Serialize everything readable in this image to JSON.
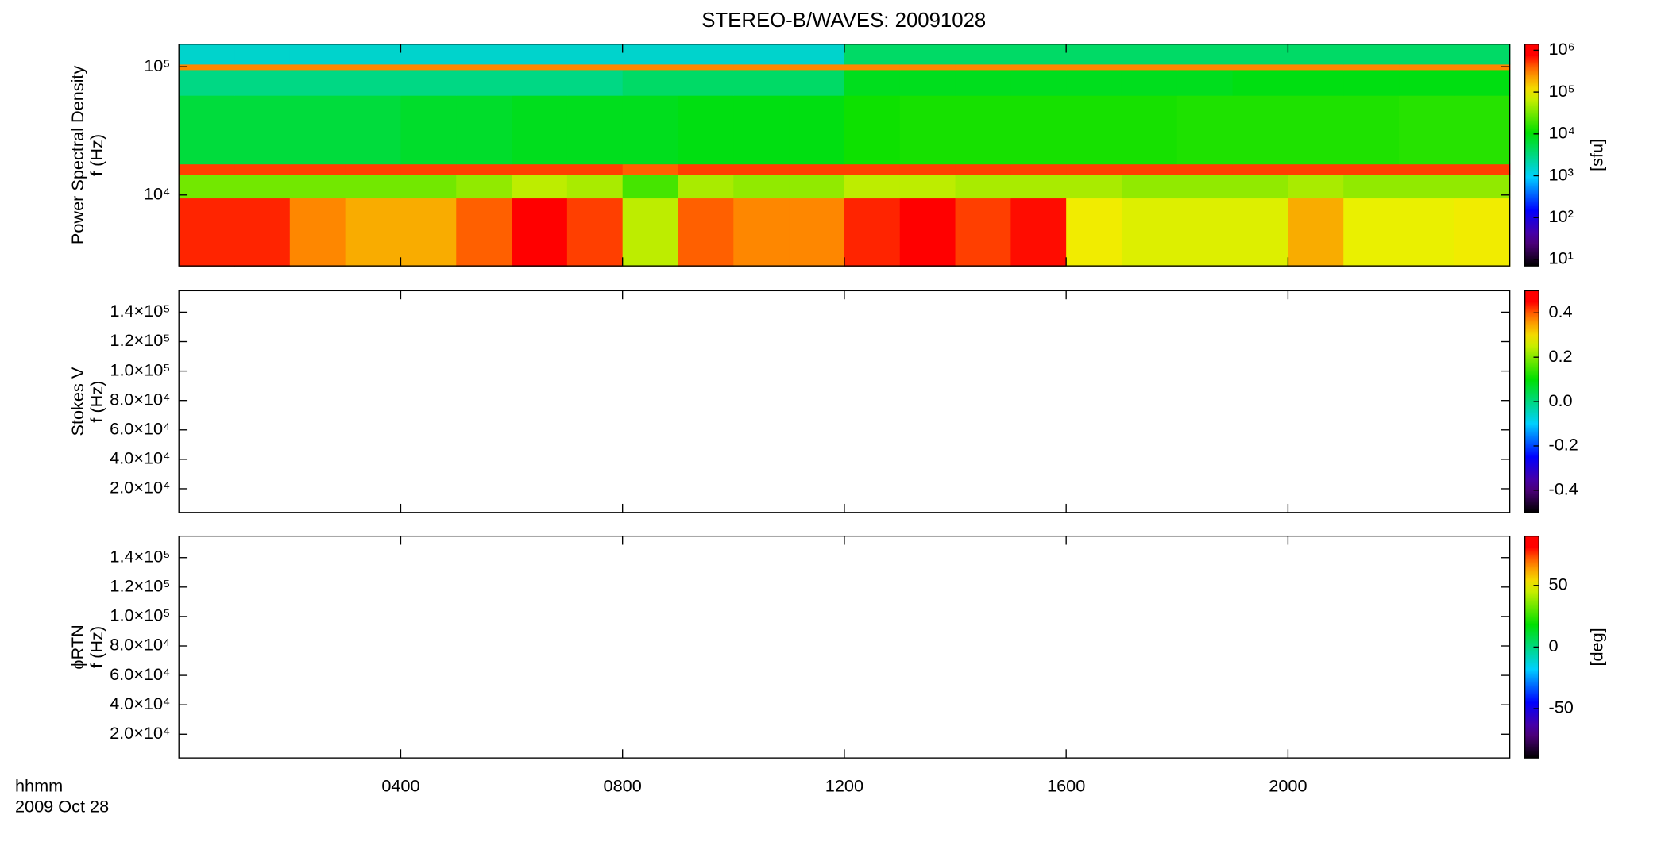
{
  "chart_data": [
    {
      "type": "heatmap",
      "title": "STEREO-B/WAVES: 20091028",
      "y_label_lines": [
        "Power Spectral Density",
        "f (Hz)"
      ],
      "xlim": [
        0,
        24
      ],
      "ylim": [
        2800,
        150000
      ],
      "y_scale": "log",
      "yticks": [
        {
          "value": 10000,
          "label": "10⁴"
        },
        {
          "value": 100000,
          "label": "10⁵"
        }
      ],
      "xbins": [
        0,
        1,
        2,
        3,
        4,
        5,
        6,
        7,
        8,
        9,
        10,
        11,
        12,
        13,
        14,
        15,
        16,
        17,
        18,
        19,
        20,
        21,
        22,
        23,
        24
      ],
      "ybins": [
        2800,
        9500,
        14500,
        17500,
        60000,
        95000,
        105000,
        150000
      ],
      "z": [
        [
          600000,
          600000,
          300000,
          200000,
          200000,
          400000,
          800000,
          500000,
          60000,
          400000,
          300000,
          300000,
          600000,
          800000,
          500000,
          700000,
          100000,
          80000,
          80000,
          80000,
          200000,
          90000,
          90000,
          100000
        ],
        [
          30000,
          30000,
          30000,
          30000,
          30000,
          40000,
          60000,
          50000,
          20000,
          50000,
          40000,
          40000,
          60000,
          60000,
          50000,
          50000,
          50000,
          40000,
          40000,
          40000,
          50000,
          40000,
          40000,
          40000
        ],
        [
          500000,
          500000,
          500000,
          500000,
          500000,
          500000,
          500000,
          500000,
          400000,
          500000,
          500000,
          500000,
          500000,
          500000,
          500000,
          500000,
          500000,
          500000,
          500000,
          500000,
          500000,
          500000,
          500000,
          500000
        ],
        [
          6000,
          6000,
          6000,
          6000,
          7000,
          7000,
          8000,
          8000,
          8000,
          9000,
          9000,
          9000,
          12000,
          13000,
          13000,
          13000,
          13000,
          13000,
          14000,
          14000,
          14000,
          14000,
          15000,
          15000
        ],
        [
          3000,
          3000,
          3000,
          3000,
          3000,
          3000,
          3000,
          3000,
          4000,
          4000,
          4000,
          4000,
          8000,
          8000,
          8000,
          8000,
          8000,
          8000,
          8000,
          9000,
          9000,
          9000,
          9000,
          9000
        ],
        [
          300000,
          300000,
          300000,
          300000,
          300000,
          300000,
          300000,
          300000,
          300000,
          300000,
          300000,
          300000,
          300000,
          300000,
          300000,
          300000,
          300000,
          300000,
          300000,
          300000,
          300000,
          300000,
          300000,
          300000
        ],
        [
          1500,
          1500,
          1500,
          1500,
          1500,
          1500,
          1500,
          1500,
          1500,
          1500,
          1500,
          1500,
          4000,
          4000,
          4000,
          4000,
          4000,
          4000,
          4000,
          4000,
          4000,
          4000,
          4000,
          4000
        ]
      ],
      "colormap": "rainbow",
      "colorbar": {
        "scale": "log",
        "zlim": [
          7,
          1400000
        ],
        "label": "[sfu]",
        "zticks": [
          {
            "value": 10,
            "label": "10¹"
          },
          {
            "value": 100,
            "label": "10²"
          },
          {
            "value": 1000,
            "label": "10³"
          },
          {
            "value": 10000,
            "label": "10⁴"
          },
          {
            "value": 100000,
            "label": "10⁵"
          },
          {
            "value": 1000000,
            "label": "10⁶"
          }
        ]
      }
    },
    {
      "type": "heatmap",
      "y_label_lines": [
        "Stokes V",
        "f (Hz)"
      ],
      "xlim": [
        0,
        24
      ],
      "ylim": [
        3900,
        154600
      ],
      "y_scale": "linear",
      "yticks": [
        {
          "value": 20000,
          "label": "2.0×10⁴"
        },
        {
          "value": 40000,
          "label": "4.0×10⁴"
        },
        {
          "value": 60000,
          "label": "6.0×10⁴"
        },
        {
          "value": 80000,
          "label": "8.0×10⁴"
        },
        {
          "value": 100000,
          "label": "1.0×10⁵"
        },
        {
          "value": 120000,
          "label": "1.2×10⁵"
        },
        {
          "value": 140000,
          "label": "1.4×10⁵"
        }
      ],
      "colormap": "rainbow",
      "colorbar": {
        "scale": "linear",
        "zlim": [
          -0.5,
          0.5
        ],
        "zticks": [
          -0.4,
          -0.2,
          {
            "value": 0,
            "label": "0.0"
          },
          0.2,
          0.4
        ]
      }
    },
    {
      "type": "heatmap",
      "y_label_lines": [
        "ϕRTN",
        "f (Hz)"
      ],
      "xlim": [
        0,
        24
      ],
      "ylim": [
        3900,
        154600
      ],
      "y_scale": "linear",
      "yticks": [
        {
          "value": 20000,
          "label": "2.0×10⁴"
        },
        {
          "value": 40000,
          "label": "4.0×10⁴"
        },
        {
          "value": 60000,
          "label": "6.0×10⁴"
        },
        {
          "value": 80000,
          "label": "8.0×10⁴"
        },
        {
          "value": 100000,
          "label": "1.0×10⁵"
        },
        {
          "value": 120000,
          "label": "1.2×10⁵"
        },
        {
          "value": 140000,
          "label": "1.4×10⁵"
        }
      ],
      "colormap": "rainbow",
      "colorbar": {
        "scale": "linear",
        "zlim": [
          -90,
          90
        ],
        "label": "[deg]",
        "zticks": [
          -50,
          0,
          50
        ]
      },
      "x_label": "hhmm",
      "date_label": "2009 Oct 28",
      "xticks": [
        {
          "value": 4,
          "label": "0400"
        },
        {
          "value": 8,
          "label": "0800"
        },
        {
          "value": 12,
          "label": "1200"
        },
        {
          "value": 16,
          "label": "1600"
        },
        {
          "value": 20,
          "label": "2000"
        }
      ]
    }
  ]
}
